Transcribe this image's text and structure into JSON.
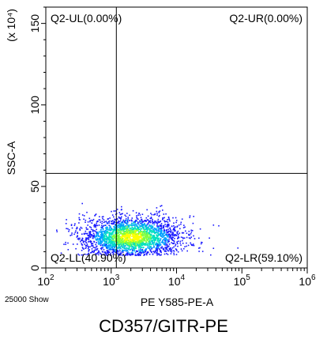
{
  "chart_data": {
    "type": "scatter",
    "subtype": "flow-cytometry-density-dot-plot",
    "xlabel": "PE Y585-PE-A",
    "ylabel": "SSC-A",
    "y_multiplier": "(x 10⁴)",
    "x_scale": "log",
    "xlim": [
      100,
      1000000
    ],
    "x_ticks": [
      {
        "value": 100,
        "base": "10",
        "exp": "2"
      },
      {
        "value": 1000,
        "base": "10",
        "exp": "3"
      },
      {
        "value": 10000,
        "base": "10",
        "exp": "4"
      },
      {
        "value": 100000,
        "base": "10",
        "exp": "5"
      },
      {
        "value": 1000000,
        "base": "10",
        "exp": "6"
      }
    ],
    "y_scale": "linear",
    "ylim": [
      0,
      160
    ],
    "y_ticks": [
      0,
      50,
      100,
      150
    ],
    "gate": {
      "x_threshold": 1200,
      "y_threshold": 58
    },
    "quadrants": [
      {
        "name": "Q2-UL",
        "percent": "0.00%",
        "label": "Q2-UL(0.00%)"
      },
      {
        "name": "Q2-UR",
        "percent": "0.00%",
        "label": "Q2-UR(0.00%)"
      },
      {
        "name": "Q2-LL",
        "percent": "40.90%",
        "label": "Q2-LL(40.90%)"
      },
      {
        "name": "Q2-LR",
        "percent": "59.10%",
        "label": "Q2-LR(59.10%)"
      }
    ],
    "events_shown": "25000 Show",
    "density_colors": [
      "#1a1aff",
      "#00a0ff",
      "#00e0c0",
      "#80ff40",
      "#ffff00"
    ],
    "population": {
      "center_x": 2000,
      "center_y": 18,
      "spread_log_x": 0.38,
      "spread_y": 6
    }
  },
  "caption": "CD357/GITR-PE"
}
